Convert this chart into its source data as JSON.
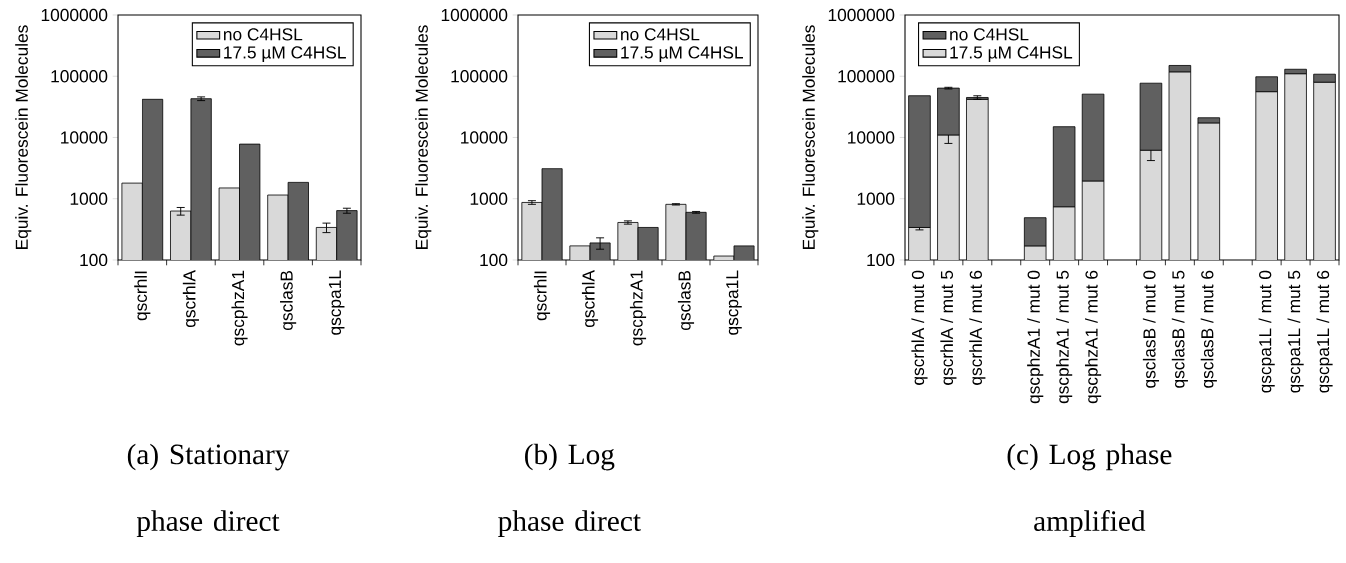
{
  "chart_data": [
    {
      "type": "bar",
      "categories": [
        "qscrhlI",
        "qscrhlA",
        "qscphzA1",
        "qsclasB",
        "qscpa1L"
      ],
      "ylabel": "Equiv. Fluorescein Molecules",
      "log": "y",
      "ylim": [
        100,
        1000000
      ],
      "yticks": [
        100,
        1000,
        10000,
        100000,
        1000000
      ],
      "legend": "top right",
      "series": [
        {
          "name": "no C4HSL",
          "color": "#d9d9d9",
          "values": [
            1800,
            630,
            1500,
            1150,
            340
          ],
          "errors": [
            null,
            90,
            null,
            null,
            60
          ]
        },
        {
          "name": "17.5 µM C4HSL",
          "color": "#606060",
          "values": [
            42000,
            43000,
            7800,
            1850,
            640
          ],
          "errors": [
            null,
            3000,
            null,
            null,
            60
          ]
        }
      ],
      "annotations": [
        "(a) Stationary phase direct"
      ]
    },
    {
      "type": "bar",
      "categories": [
        "qscrhlI",
        "qscrhlA",
        "qscphzA1",
        "qsclasB",
        "qscpa1L"
      ],
      "ylabel": "Equiv. Fluorescein Molecules",
      "log": "y",
      "ylim": [
        100,
        1000000
      ],
      "yticks": [
        100,
        1000,
        10000,
        100000,
        1000000
      ],
      "legend": "top right",
      "series": [
        {
          "name": "no C4HSL",
          "color": "#d9d9d9",
          "values": [
            870,
            170,
            410,
            810,
            116
          ],
          "errors": [
            60,
            null,
            25,
            20,
            null
          ]
        },
        {
          "name": "17.5 µM C4HSL",
          "color": "#606060",
          "values": [
            3100,
            190,
            340,
            600,
            170
          ],
          "errors": [
            null,
            40,
            null,
            20,
            null
          ]
        }
      ],
      "annotations": [
        "(b) Log phase direct"
      ]
    },
    {
      "type": "bar",
      "stacked": true,
      "categories": [
        "qscrhlA / mut 0",
        "qscrhlA / mut 5",
        "qscrhlA / mut 6",
        null,
        "qscphzA1 / mut 0",
        "qscphzA1 / mut 5",
        "qscphzA1 / mut 6",
        null,
        "qsclasB / mut 0",
        "qsclasB / mut 5",
        "qsclasB / mut 6",
        null,
        "qscpa1L / mut 0",
        "qscpa1L / mut 5",
        "qscpa1L / mut 6"
      ],
      "ylabel": "Equiv. Fluorescein Molecules",
      "log": "y",
      "ylim": [
        100,
        1000000
      ],
      "yticks": [
        100,
        1000,
        10000,
        100000,
        1000000
      ],
      "legend": "top left",
      "series": [
        {
          "name": "17.5 µM C4HSL",
          "color": "#d9d9d9",
          "values": [
            340,
            11000,
            42000,
            null,
            170,
            740,
            1950,
            null,
            6200,
            118000,
            17300,
            null,
            56000,
            110000,
            80000
          ],
          "errors": [
            30,
            3000,
            null,
            null,
            null,
            null,
            null,
            null,
            2000,
            null,
            null,
            null,
            null,
            null,
            null
          ]
        },
        {
          "name": "no C4HSL",
          "color": "#606060",
          "values": [
            47700,
            53000,
            3000,
            null,
            320,
            14260,
            49050,
            null,
            70800,
            32000,
            3700,
            null,
            42000,
            20000,
            28000
          ],
          "errors": [
            null,
            2000,
            3000,
            null,
            null,
            null,
            null,
            null,
            null,
            null,
            null,
            null,
            null,
            null,
            null
          ]
        }
      ],
      "annotations": [
        "(c) Log phase amplified"
      ]
    }
  ]
}
